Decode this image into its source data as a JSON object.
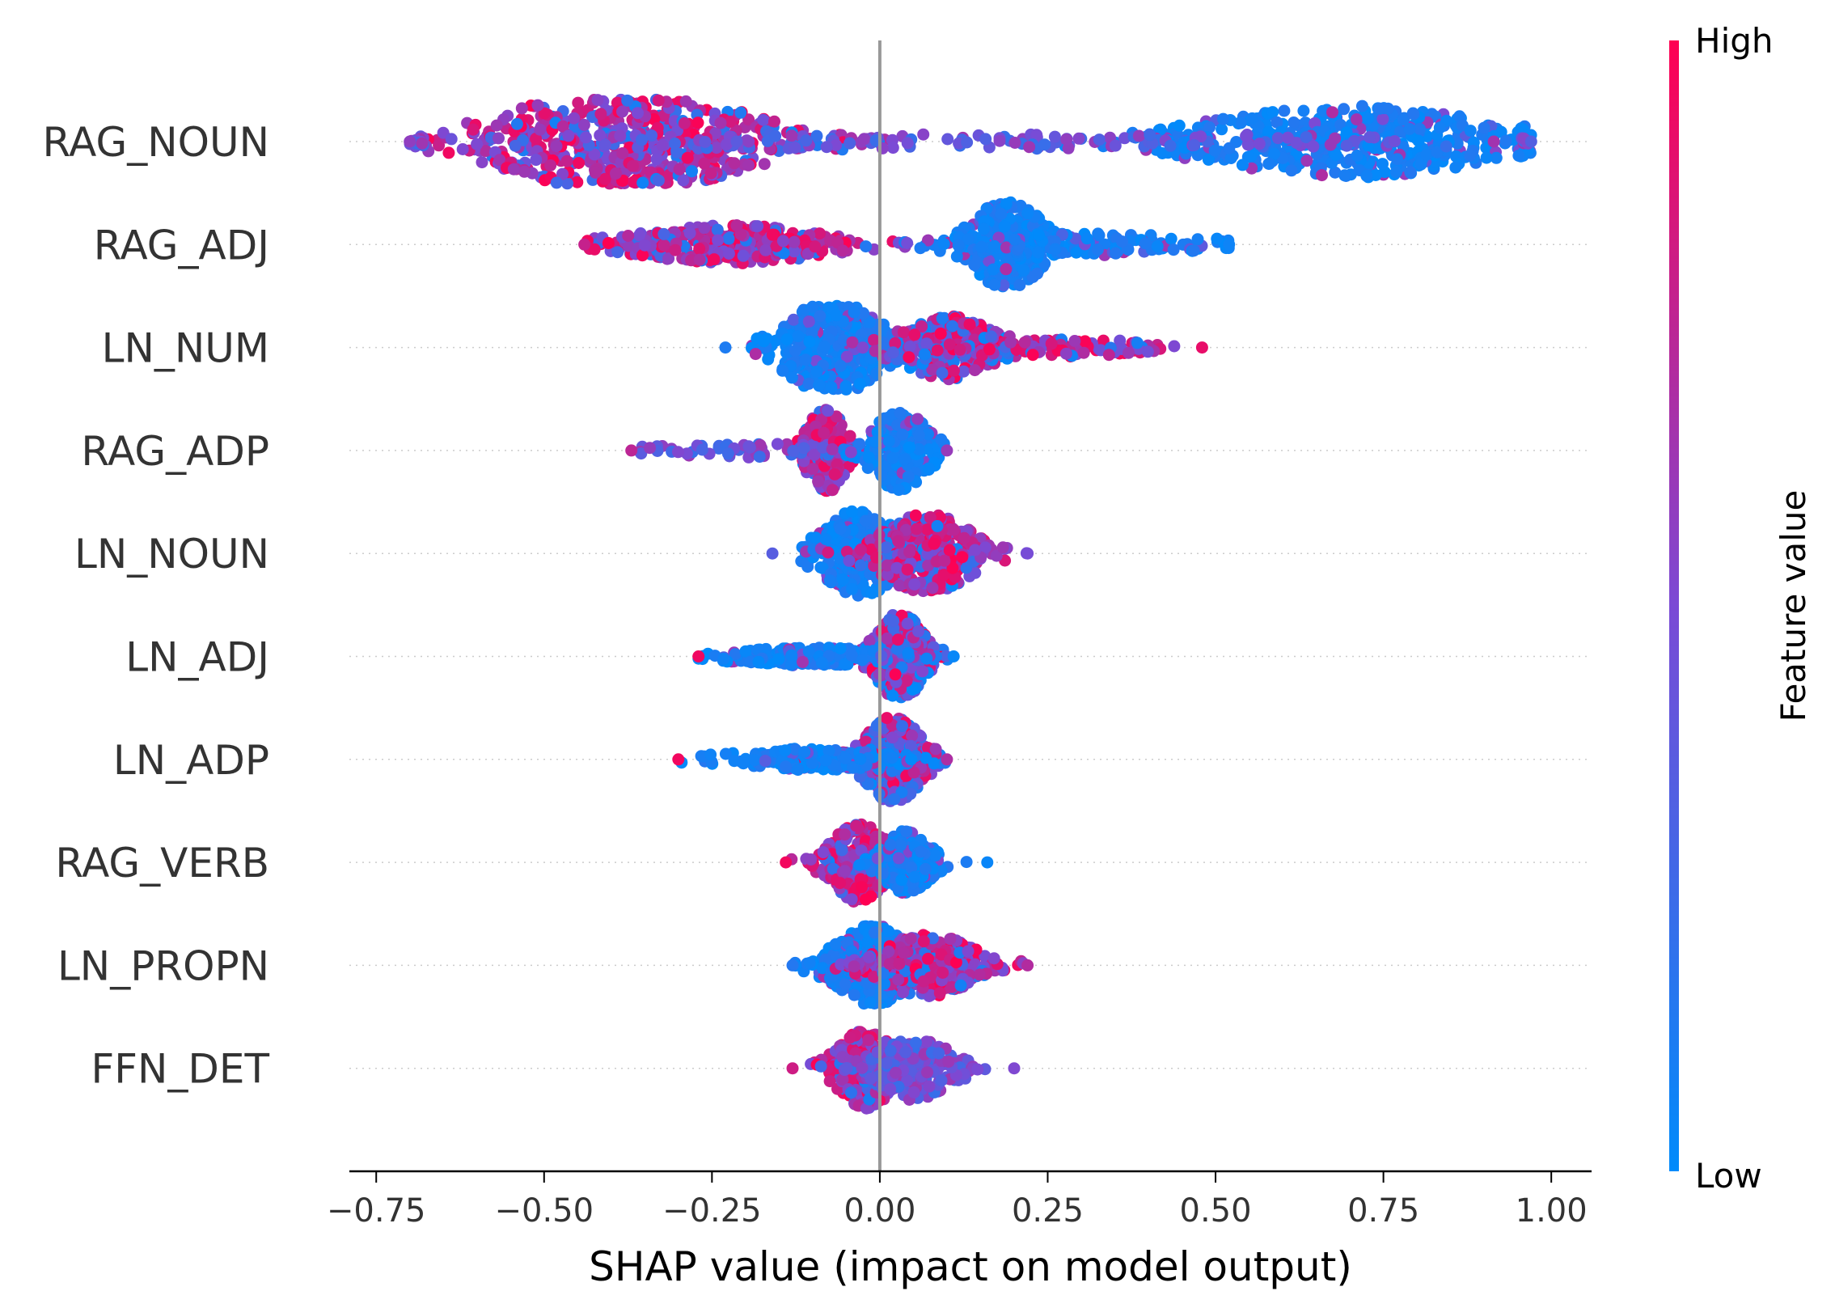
{
  "chart_data": {
    "type": "scatter",
    "subtype": "shap-beeswarm",
    "xlabel": "SHAP value (impact on model output)",
    "xlim": [
      -0.79,
      1.06
    ],
    "xticks": [
      -0.75,
      -0.5,
      -0.25,
      0.0,
      0.25,
      0.5,
      0.75,
      1.0
    ],
    "xtick_labels": [
      "−0.75",
      "−0.50",
      "−0.25",
      "0.00",
      "0.25",
      "0.50",
      "0.75",
      "1.00"
    ],
    "features": [
      {
        "name": "RAG_NOUN",
        "min": -0.7,
        "max": 0.97,
        "clusters": [
          {
            "center": -0.38,
            "spread": 0.13,
            "n": 520,
            "color_mode": "high",
            "max_halfwidth": 0.6
          },
          {
            "center": 0.7,
            "spread": 0.16,
            "n": 460,
            "color_mode": "low",
            "max_halfwidth": 0.4
          },
          {
            "center": 0.05,
            "spread": 0.55,
            "n": 180,
            "color_mode": "mid",
            "max_halfwidth": 0.06
          }
        ]
      },
      {
        "name": "RAG_ADJ",
        "min": -0.44,
        "max": 0.52,
        "clusters": [
          {
            "center": -0.22,
            "spread": 0.1,
            "n": 330,
            "color_mode": "high",
            "max_halfwidth": 0.2
          },
          {
            "center": 0.19,
            "spread": 0.04,
            "n": 300,
            "color_mode": "low",
            "max_halfwidth": 0.5
          },
          {
            "center": 0.32,
            "spread": 0.12,
            "n": 120,
            "color_mode": "low",
            "max_halfwidth": 0.1
          }
        ]
      },
      {
        "name": "LN_NUM",
        "min": -0.23,
        "max": 0.48,
        "clusters": [
          {
            "center": -0.07,
            "spread": 0.05,
            "n": 380,
            "color_mode": "low",
            "max_halfwidth": 0.55
          },
          {
            "center": 0.1,
            "spread": 0.05,
            "n": 250,
            "color_mode": "mixed",
            "max_halfwidth": 0.35
          },
          {
            "center": 0.27,
            "spread": 0.08,
            "n": 90,
            "color_mode": "high",
            "max_halfwidth": 0.08
          }
        ]
      },
      {
        "name": "RAG_ADP",
        "min": -0.37,
        "max": 0.1,
        "clusters": [
          {
            "center": -0.08,
            "spread": 0.02,
            "n": 200,
            "color_mode": "high",
            "max_halfwidth": 0.5
          },
          {
            "center": 0.03,
            "spread": 0.03,
            "n": 220,
            "color_mode": "low",
            "max_halfwidth": 0.45
          },
          {
            "center": -0.2,
            "spread": 0.08,
            "n": 60,
            "color_mode": "mid",
            "max_halfwidth": 0.06
          }
        ]
      },
      {
        "name": "LN_NOUN",
        "min": -0.16,
        "max": 0.22,
        "clusters": [
          {
            "center": -0.03,
            "spread": 0.04,
            "n": 300,
            "color_mode": "low",
            "max_halfwidth": 0.5
          },
          {
            "center": 0.07,
            "spread": 0.05,
            "n": 330,
            "color_mode": "high",
            "max_halfwidth": 0.45
          }
        ]
      },
      {
        "name": "LN_ADJ",
        "min": -0.27,
        "max": 0.11,
        "clusters": [
          {
            "center": 0.03,
            "spread": 0.025,
            "n": 380,
            "color_mode": "mixed",
            "max_halfwidth": 0.5
          },
          {
            "center": -0.1,
            "spread": 0.08,
            "n": 160,
            "color_mode": "low",
            "max_halfwidth": 0.08
          }
        ]
      },
      {
        "name": "LN_ADP",
        "min": -0.3,
        "max": 0.1,
        "clusters": [
          {
            "center": 0.02,
            "spread": 0.03,
            "n": 380,
            "color_mode": "mixed",
            "max_halfwidth": 0.5
          },
          {
            "center": -0.1,
            "spread": 0.08,
            "n": 160,
            "color_mode": "low",
            "max_halfwidth": 0.1
          }
        ]
      },
      {
        "name": "RAG_VERB",
        "min": -0.14,
        "max": 0.16,
        "clusters": [
          {
            "center": -0.03,
            "spread": 0.03,
            "n": 250,
            "color_mode": "high",
            "max_halfwidth": 0.45
          },
          {
            "center": 0.04,
            "spread": 0.025,
            "n": 200,
            "color_mode": "low",
            "max_halfwidth": 0.35
          }
        ]
      },
      {
        "name": "LN_PROPN",
        "min": -0.13,
        "max": 0.22,
        "clusters": [
          {
            "center": -0.01,
            "spread": 0.04,
            "n": 360,
            "color_mode": "low",
            "max_halfwidth": 0.45
          },
          {
            "center": 0.07,
            "spread": 0.05,
            "n": 300,
            "color_mode": "high",
            "max_halfwidth": 0.35
          }
        ]
      },
      {
        "name": "FFN_DET",
        "min": -0.13,
        "max": 0.2,
        "clusters": [
          {
            "center": -0.02,
            "spread": 0.03,
            "n": 300,
            "color_mode": "high",
            "max_halfwidth": 0.45
          },
          {
            "center": 0.05,
            "spread": 0.04,
            "n": 220,
            "color_mode": "mid",
            "max_halfwidth": 0.35
          }
        ]
      }
    ],
    "colorbar": {
      "title": "Feature value",
      "high_label": "High",
      "low_label": "Low",
      "high_color": "#ff0052",
      "low_color": "#008bfb"
    },
    "zero_line": true,
    "grid": false
  }
}
